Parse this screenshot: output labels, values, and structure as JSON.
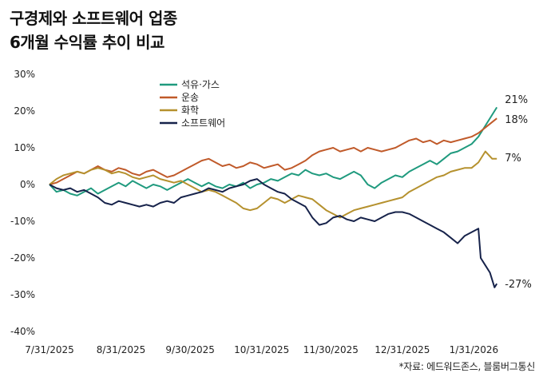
{
  "title_line1": "구경제와 소프트웨어 업종",
  "title_line2": "6개월 수익률 추이 비교",
  "source": "*자료: 에드워드존스, 블룸버그통신",
  "chart_data": {
    "type": "line",
    "title": "구경제와 소프트웨어 업종 6개월 수익률 추이 비교",
    "y_ticks": [
      "30%",
      "20%",
      "10%",
      "0%",
      "-10%",
      "-20%",
      "-30%",
      "-40%"
    ],
    "ylim": [
      -40,
      30
    ],
    "x_ticks": [
      "7/31/2025",
      "8/31/2025",
      "9/30/2025",
      "10/31/2025",
      "11/30/2025",
      "12/31/2025",
      "1/31/2026"
    ],
    "x_tick_days": [
      0,
      31,
      61,
      92,
      122,
      153,
      184
    ],
    "grid": false,
    "legend_position": "top-left",
    "series": [
      {
        "name": "석유·가스",
        "color": "#1f9a7e",
        "end_label": "21%",
        "points": [
          [
            0,
            0
          ],
          [
            3,
            -2
          ],
          [
            6,
            -1.5
          ],
          [
            9,
            -2.5
          ],
          [
            12,
            -3
          ],
          [
            15,
            -2
          ],
          [
            18,
            -1
          ],
          [
            21,
            -2.5
          ],
          [
            24,
            -1.5
          ],
          [
            27,
            -0.5
          ],
          [
            30,
            0.5
          ],
          [
            33,
            -0.5
          ],
          [
            36,
            1
          ],
          [
            39,
            0
          ],
          [
            42,
            -1
          ],
          [
            45,
            0
          ],
          [
            48,
            -0.5
          ],
          [
            51,
            -1.5
          ],
          [
            54,
            -0.5
          ],
          [
            57,
            0.5
          ],
          [
            60,
            1.5
          ],
          [
            63,
            0.5
          ],
          [
            66,
            -0.5
          ],
          [
            69,
            0.5
          ],
          [
            72,
            -0.5
          ],
          [
            75,
            -1
          ],
          [
            78,
            0
          ],
          [
            81,
            -0.5
          ],
          [
            84,
            0.5
          ],
          [
            87,
            -1
          ],
          [
            90,
            0
          ],
          [
            93,
            0.5
          ],
          [
            96,
            1.5
          ],
          [
            99,
            1
          ],
          [
            102,
            2
          ],
          [
            105,
            3
          ],
          [
            108,
            2.5
          ],
          [
            111,
            4
          ],
          [
            114,
            3
          ],
          [
            117,
            2.5
          ],
          [
            120,
            3
          ],
          [
            123,
            2
          ],
          [
            126,
            1.5
          ],
          [
            129,
            2.5
          ],
          [
            132,
            3.5
          ],
          [
            135,
            2.5
          ],
          [
            138,
            0
          ],
          [
            141,
            -1
          ],
          [
            144,
            0.5
          ],
          [
            147,
            1.5
          ],
          [
            150,
            2.5
          ],
          [
            153,
            2
          ],
          [
            156,
            3.5
          ],
          [
            159,
            4.5
          ],
          [
            162,
            5.5
          ],
          [
            165,
            6.5
          ],
          [
            168,
            5.5
          ],
          [
            171,
            7
          ],
          [
            174,
            8.5
          ],
          [
            177,
            9
          ],
          [
            180,
            10
          ],
          [
            183,
            11
          ],
          [
            186,
            13
          ],
          [
            189,
            16
          ],
          [
            192,
            19
          ],
          [
            194,
            21
          ]
        ]
      },
      {
        "name": "운송",
        "color": "#c05a2a",
        "end_label": "18%",
        "points": [
          [
            0,
            0
          ],
          [
            3,
            0.5
          ],
          [
            6,
            1.5
          ],
          [
            9,
            2.5
          ],
          [
            12,
            3.5
          ],
          [
            15,
            3
          ],
          [
            18,
            4
          ],
          [
            21,
            5
          ],
          [
            24,
            4
          ],
          [
            27,
            3.5
          ],
          [
            30,
            4.5
          ],
          [
            33,
            4
          ],
          [
            36,
            3
          ],
          [
            39,
            2.5
          ],
          [
            42,
            3.5
          ],
          [
            45,
            4
          ],
          [
            48,
            3
          ],
          [
            51,
            2
          ],
          [
            54,
            2.5
          ],
          [
            57,
            3.5
          ],
          [
            60,
            4.5
          ],
          [
            63,
            5.5
          ],
          [
            66,
            6.5
          ],
          [
            69,
            7
          ],
          [
            72,
            6
          ],
          [
            75,
            5
          ],
          [
            78,
            5.5
          ],
          [
            81,
            4.5
          ],
          [
            84,
            5
          ],
          [
            87,
            6
          ],
          [
            90,
            5.5
          ],
          [
            93,
            4.5
          ],
          [
            96,
            5
          ],
          [
            99,
            5.5
          ],
          [
            102,
            4
          ],
          [
            105,
            4.5
          ],
          [
            108,
            5.5
          ],
          [
            111,
            6.5
          ],
          [
            114,
            8
          ],
          [
            117,
            9
          ],
          [
            120,
            9.5
          ],
          [
            123,
            10
          ],
          [
            126,
            9
          ],
          [
            129,
            9.5
          ],
          [
            132,
            10
          ],
          [
            135,
            9
          ],
          [
            138,
            10
          ],
          [
            141,
            9.5
          ],
          [
            144,
            9
          ],
          [
            147,
            9.5
          ],
          [
            150,
            10
          ],
          [
            153,
            11
          ],
          [
            156,
            12
          ],
          [
            159,
            12.5
          ],
          [
            162,
            11.5
          ],
          [
            165,
            12
          ],
          [
            168,
            11
          ],
          [
            171,
            12
          ],
          [
            174,
            11.5
          ],
          [
            177,
            12
          ],
          [
            180,
            12.5
          ],
          [
            183,
            13
          ],
          [
            186,
            14
          ],
          [
            189,
            15.5
          ],
          [
            192,
            17
          ],
          [
            194,
            18
          ]
        ]
      },
      {
        "name": "화학",
        "color": "#b5912e",
        "end_label": "7%",
        "points": [
          [
            0,
            0
          ],
          [
            3,
            1.5
          ],
          [
            6,
            2.5
          ],
          [
            9,
            3
          ],
          [
            12,
            3.5
          ],
          [
            15,
            3
          ],
          [
            18,
            4
          ],
          [
            21,
            4.5
          ],
          [
            24,
            4
          ],
          [
            27,
            3
          ],
          [
            30,
            3.5
          ],
          [
            33,
            3
          ],
          [
            36,
            2
          ],
          [
            39,
            1.5
          ],
          [
            42,
            2
          ],
          [
            45,
            2.5
          ],
          [
            48,
            1.5
          ],
          [
            51,
            1
          ],
          [
            54,
            0.5
          ],
          [
            57,
            1
          ],
          [
            60,
            0
          ],
          [
            63,
            -1
          ],
          [
            66,
            -2
          ],
          [
            69,
            -1.5
          ],
          [
            72,
            -2
          ],
          [
            75,
            -3
          ],
          [
            78,
            -4
          ],
          [
            81,
            -5
          ],
          [
            84,
            -6.5
          ],
          [
            87,
            -7
          ],
          [
            90,
            -6.5
          ],
          [
            93,
            -5
          ],
          [
            96,
            -3.5
          ],
          [
            99,
            -4
          ],
          [
            102,
            -5
          ],
          [
            105,
            -4
          ],
          [
            108,
            -3
          ],
          [
            111,
            -3.5
          ],
          [
            114,
            -4
          ],
          [
            117,
            -5.5
          ],
          [
            120,
            -7
          ],
          [
            123,
            -8
          ],
          [
            126,
            -9
          ],
          [
            129,
            -8
          ],
          [
            132,
            -7
          ],
          [
            135,
            -6.5
          ],
          [
            138,
            -6
          ],
          [
            141,
            -5.5
          ],
          [
            144,
            -5
          ],
          [
            147,
            -4.5
          ],
          [
            150,
            -4
          ],
          [
            153,
            -3.5
          ],
          [
            156,
            -2
          ],
          [
            159,
            -1
          ],
          [
            162,
            0
          ],
          [
            165,
            1
          ],
          [
            168,
            2
          ],
          [
            171,
            2.5
          ],
          [
            174,
            3.5
          ],
          [
            177,
            4
          ],
          [
            180,
            4.5
          ],
          [
            183,
            4.5
          ],
          [
            186,
            6
          ],
          [
            189,
            9
          ],
          [
            192,
            7
          ],
          [
            194,
            7
          ]
        ]
      },
      {
        "name": "소프트웨어",
        "color": "#16224a",
        "end_label": "-27%",
        "points": [
          [
            0,
            0
          ],
          [
            3,
            -1
          ],
          [
            6,
            -1.5
          ],
          [
            9,
            -1
          ],
          [
            12,
            -2
          ],
          [
            15,
            -1.5
          ],
          [
            18,
            -2.5
          ],
          [
            21,
            -3.5
          ],
          [
            24,
            -5
          ],
          [
            27,
            -5.5
          ],
          [
            30,
            -4.5
          ],
          [
            33,
            -5
          ],
          [
            36,
            -5.5
          ],
          [
            39,
            -6
          ],
          [
            42,
            -5.5
          ],
          [
            45,
            -6
          ],
          [
            48,
            -5
          ],
          [
            51,
            -4.5
          ],
          [
            54,
            -5
          ],
          [
            57,
            -3.5
          ],
          [
            60,
            -3
          ],
          [
            63,
            -2.5
          ],
          [
            66,
            -2
          ],
          [
            69,
            -1
          ],
          [
            72,
            -1.5
          ],
          [
            75,
            -2
          ],
          [
            78,
            -1
          ],
          [
            81,
            -0.5
          ],
          [
            84,
            0
          ],
          [
            87,
            1
          ],
          [
            90,
            1.5
          ],
          [
            93,
            0
          ],
          [
            96,
            -1
          ],
          [
            99,
            -2
          ],
          [
            102,
            -2.5
          ],
          [
            105,
            -4
          ],
          [
            108,
            -5
          ],
          [
            111,
            -6
          ],
          [
            114,
            -9
          ],
          [
            117,
            -11
          ],
          [
            120,
            -10.5
          ],
          [
            123,
            -9
          ],
          [
            126,
            -8.5
          ],
          [
            129,
            -9.5
          ],
          [
            132,
            -10
          ],
          [
            135,
            -9
          ],
          [
            138,
            -9.5
          ],
          [
            141,
            -10
          ],
          [
            144,
            -9
          ],
          [
            147,
            -8
          ],
          [
            150,
            -7.5
          ],
          [
            153,
            -7.5
          ],
          [
            156,
            -8
          ],
          [
            159,
            -9
          ],
          [
            162,
            -10
          ],
          [
            165,
            -11
          ],
          [
            168,
            -12
          ],
          [
            171,
            -13
          ],
          [
            174,
            -14.5
          ],
          [
            177,
            -16
          ],
          [
            180,
            -14
          ],
          [
            183,
            -13
          ],
          [
            186,
            -12
          ],
          [
            187,
            -20
          ],
          [
            189,
            -22
          ],
          [
            191,
            -24
          ],
          [
            193,
            -28
          ],
          [
            194,
            -27
          ]
        ]
      }
    ]
  }
}
